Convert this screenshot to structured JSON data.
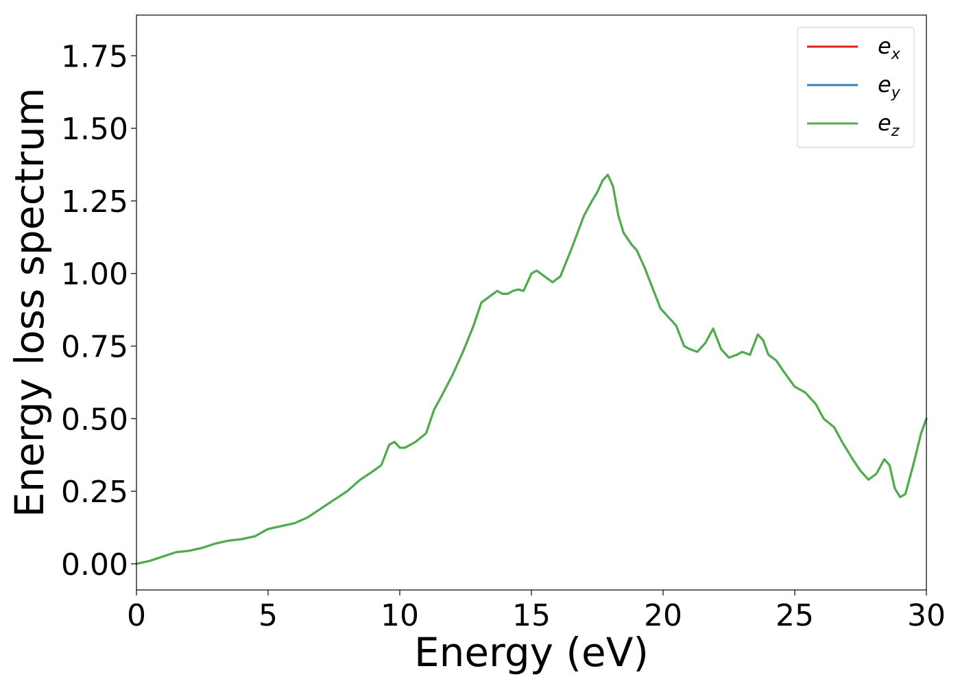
{
  "chart_data": {
    "type": "line",
    "xlabel": "Energy (eV)",
    "ylabel": "Energy loss spectrum",
    "xlim": [
      0,
      30
    ],
    "ylim": [
      -0.09,
      1.89
    ],
    "xticks": [
      0,
      5,
      10,
      15,
      20,
      25,
      30
    ],
    "xtick_labels": [
      "0",
      "5",
      "10",
      "15",
      "20",
      "25",
      "30"
    ],
    "yticks": [
      0,
      0.25,
      0.5,
      0.75,
      1.0,
      1.25,
      1.5,
      1.75
    ],
    "ytick_labels": [
      "0.00",
      "0.25",
      "0.50",
      "0.75",
      "1.00",
      "1.25",
      "1.50",
      "1.75"
    ],
    "grid": false,
    "legend_position": "top-right",
    "series": [
      {
        "name_base": "e",
        "name_sub": "x",
        "color": "#e41a1c",
        "x": [
          0,
          0.5,
          1,
          1.5,
          2,
          2.5,
          3,
          3.5,
          4,
          4.5,
          5,
          5.5,
          6,
          6.5,
          7,
          7.5,
          8,
          8.5,
          9,
          9.3,
          9.6,
          9.8,
          10,
          10.2,
          10.6,
          11,
          11.3,
          11.6,
          12,
          12.4,
          12.8,
          13.1,
          13.4,
          13.7,
          13.9,
          14.1,
          14.3,
          14.5,
          14.7,
          15,
          15.2,
          15.5,
          15.8,
          16.1,
          16.5,
          17,
          17.3,
          17.5,
          17.7,
          17.9,
          18.1,
          18.3,
          18.5,
          18.8,
          19,
          19.3,
          19.6,
          19.9,
          20.2,
          20.5,
          20.8,
          21,
          21.3,
          21.6,
          21.9,
          22.2,
          22.5,
          22.8,
          23,
          23.3,
          23.6,
          23.8,
          24,
          24.3,
          24.6,
          25,
          25.4,
          25.8,
          26.1,
          26.5,
          26.8,
          27.2,
          27.5,
          27.8,
          28.1,
          28.4,
          28.6,
          28.8,
          29,
          29.2,
          29.5,
          29.8,
          30
        ],
        "y": [
          0.0,
          0.01,
          0.025,
          0.04,
          0.045,
          0.055,
          0.07,
          0.08,
          0.085,
          0.095,
          0.12,
          0.13,
          0.14,
          0.16,
          0.19,
          0.22,
          0.25,
          0.29,
          0.32,
          0.34,
          0.41,
          0.42,
          0.4,
          0.4,
          0.42,
          0.45,
          0.53,
          0.58,
          0.65,
          0.73,
          0.82,
          0.9,
          0.92,
          0.94,
          0.93,
          0.93,
          0.94,
          0.945,
          0.94,
          1.0,
          1.01,
          0.99,
          0.97,
          0.99,
          1.08,
          1.2,
          1.25,
          1.28,
          1.32,
          1.34,
          1.3,
          1.2,
          1.14,
          1.1,
          1.08,
          1.02,
          0.95,
          0.88,
          0.85,
          0.82,
          0.75,
          0.74,
          0.73,
          0.76,
          0.81,
          0.74,
          0.71,
          0.72,
          0.73,
          0.72,
          0.79,
          0.77,
          0.72,
          0.7,
          0.66,
          0.61,
          0.59,
          0.55,
          0.5,
          0.47,
          0.42,
          0.36,
          0.32,
          0.29,
          0.31,
          0.36,
          0.34,
          0.26,
          0.23,
          0.24,
          0.34,
          0.45,
          0.5
        ]
      },
      {
        "name_base": "e",
        "name_sub": "y",
        "color": "#377eb8",
        "x": [
          0,
          0.5,
          1,
          1.5,
          2,
          2.5,
          3,
          3.5,
          4,
          4.5,
          5,
          5.5,
          6,
          6.5,
          7,
          7.5,
          8,
          8.5,
          9,
          9.3,
          9.6,
          9.8,
          10,
          10.2,
          10.6,
          11,
          11.3,
          11.6,
          12,
          12.4,
          12.8,
          13.1,
          13.4,
          13.7,
          13.9,
          14.1,
          14.3,
          14.5,
          14.7,
          15,
          15.2,
          15.5,
          15.8,
          16.1,
          16.5,
          17,
          17.3,
          17.5,
          17.7,
          17.9,
          18.1,
          18.3,
          18.5,
          18.8,
          19,
          19.3,
          19.6,
          19.9,
          20.2,
          20.5,
          20.8,
          21,
          21.3,
          21.6,
          21.9,
          22.2,
          22.5,
          22.8,
          23,
          23.3,
          23.6,
          23.8,
          24,
          24.3,
          24.6,
          25,
          25.4,
          25.8,
          26.1,
          26.5,
          26.8,
          27.2,
          27.5,
          27.8,
          28.1,
          28.4,
          28.6,
          28.8,
          29,
          29.2,
          29.5,
          29.8,
          30
        ],
        "y": [
          0.0,
          0.01,
          0.025,
          0.04,
          0.045,
          0.055,
          0.07,
          0.08,
          0.085,
          0.095,
          0.12,
          0.13,
          0.14,
          0.16,
          0.19,
          0.22,
          0.25,
          0.29,
          0.32,
          0.34,
          0.41,
          0.42,
          0.4,
          0.4,
          0.42,
          0.45,
          0.53,
          0.58,
          0.65,
          0.73,
          0.82,
          0.9,
          0.92,
          0.94,
          0.93,
          0.93,
          0.94,
          0.945,
          0.94,
          1.0,
          1.01,
          0.99,
          0.97,
          0.99,
          1.08,
          1.2,
          1.25,
          1.28,
          1.32,
          1.34,
          1.3,
          1.2,
          1.14,
          1.1,
          1.08,
          1.02,
          0.95,
          0.88,
          0.85,
          0.82,
          0.75,
          0.74,
          0.73,
          0.76,
          0.81,
          0.74,
          0.71,
          0.72,
          0.73,
          0.72,
          0.79,
          0.77,
          0.72,
          0.7,
          0.66,
          0.61,
          0.59,
          0.55,
          0.5,
          0.47,
          0.42,
          0.36,
          0.32,
          0.29,
          0.31,
          0.36,
          0.34,
          0.26,
          0.23,
          0.24,
          0.34,
          0.45,
          0.5
        ]
      },
      {
        "name_base": "e",
        "name_sub": "z",
        "color": "#4daf4a",
        "x": [
          0,
          0.5,
          1,
          1.5,
          2,
          2.5,
          3,
          3.5,
          4,
          4.5,
          5,
          5.5,
          6,
          6.5,
          7,
          7.5,
          8,
          8.5,
          9,
          9.3,
          9.6,
          9.8,
          10,
          10.2,
          10.6,
          11,
          11.3,
          11.6,
          12,
          12.4,
          12.8,
          13.1,
          13.4,
          13.7,
          13.9,
          14.1,
          14.3,
          14.5,
          14.7,
          15,
          15.2,
          15.5,
          15.8,
          16.1,
          16.5,
          17,
          17.3,
          17.5,
          17.7,
          17.9,
          18.1,
          18.3,
          18.5,
          18.8,
          19,
          19.3,
          19.6,
          19.9,
          20.2,
          20.5,
          20.8,
          21,
          21.3,
          21.6,
          21.9,
          22.2,
          22.5,
          22.8,
          23,
          23.3,
          23.6,
          23.8,
          24,
          24.3,
          24.6,
          25,
          25.4,
          25.8,
          26.1,
          26.5,
          26.8,
          27.2,
          27.5,
          27.8,
          28.1,
          28.4,
          28.6,
          28.8,
          29,
          29.2,
          29.5,
          29.8,
          30
        ],
        "y": [
          0.0,
          0.01,
          0.025,
          0.04,
          0.045,
          0.055,
          0.07,
          0.08,
          0.085,
          0.095,
          0.12,
          0.13,
          0.14,
          0.16,
          0.19,
          0.22,
          0.25,
          0.29,
          0.32,
          0.34,
          0.41,
          0.42,
          0.4,
          0.4,
          0.42,
          0.45,
          0.53,
          0.58,
          0.65,
          0.73,
          0.82,
          0.9,
          0.92,
          0.94,
          0.93,
          0.93,
          0.94,
          0.945,
          0.94,
          1.0,
          1.01,
          0.99,
          0.97,
          0.99,
          1.08,
          1.2,
          1.25,
          1.28,
          1.32,
          1.34,
          1.3,
          1.2,
          1.14,
          1.1,
          1.08,
          1.02,
          0.95,
          0.88,
          0.85,
          0.82,
          0.75,
          0.74,
          0.73,
          0.76,
          0.81,
          0.74,
          0.71,
          0.72,
          0.73,
          0.72,
          0.79,
          0.77,
          0.72,
          0.7,
          0.66,
          0.61,
          0.59,
          0.55,
          0.5,
          0.47,
          0.42,
          0.36,
          0.32,
          0.29,
          0.31,
          0.36,
          0.34,
          0.26,
          0.23,
          0.24,
          0.34,
          0.45,
          0.5
        ]
      }
    ]
  }
}
